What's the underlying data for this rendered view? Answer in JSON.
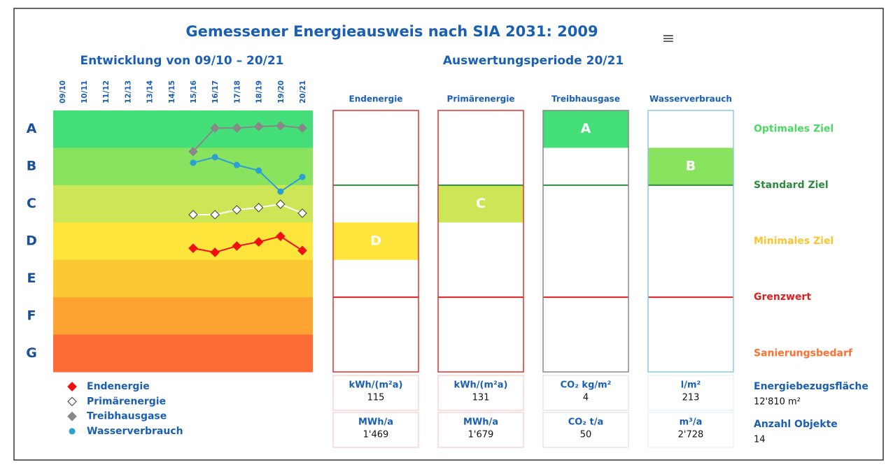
{
  "header": {
    "title": "Gemessener Energieausweis nach SIA 2031: 2009",
    "menu": "≡"
  },
  "trend": {
    "title": "Entwicklung von 09/10 – 20/21",
    "periods": [
      "09/10",
      "10/11",
      "11/12",
      "12/13",
      "13/14",
      "14/15",
      "15/16",
      "16/17",
      "17/18",
      "18/19",
      "19/20",
      "20/21"
    ],
    "classes": [
      "A",
      "B",
      "C",
      "D",
      "E",
      "F",
      "G"
    ],
    "class_colors": [
      "#44df78",
      "#8ae35f",
      "#cde655",
      "#fde53c",
      "#fdc932",
      "#fda332",
      "#fd6c36"
    ],
    "ylim": [
      0,
      7
    ],
    "series": [
      {
        "name": "Endenergie",
        "color": "#f01010",
        "marker": "diamond",
        "values": [
          null,
          null,
          null,
          null,
          null,
          null,
          3.69,
          3.8,
          3.63,
          3.52,
          3.37,
          3.75
        ]
      },
      {
        "name": "Primärenergie",
        "color": "#ffffff",
        "marker": "diamond",
        "values": [
          null,
          null,
          null,
          null,
          null,
          null,
          2.79,
          2.79,
          2.66,
          2.6,
          2.51,
          2.75
        ]
      },
      {
        "name": "Treibhausgase",
        "color": "#888888",
        "marker": "diamond",
        "values": [
          null,
          null,
          null,
          null,
          null,
          null,
          1.1,
          0.47,
          0.47,
          0.43,
          0.41,
          0.47
        ]
      },
      {
        "name": "Wasserverbrauch",
        "color": "#2a9fd6",
        "marker": "circle",
        "values": [
          null,
          null,
          null,
          null,
          null,
          null,
          1.4,
          1.25,
          1.46,
          1.61,
          2.17,
          1.78
        ]
      }
    ]
  },
  "period": {
    "title": "Auswertungsperiode 20/21",
    "columns": [
      {
        "name": "Endenergie",
        "rating": "D",
        "border": "#e33030",
        "unit": "kWh/(m²a)",
        "value": "115",
        "unit_total": "MWh/a",
        "total": "1'469"
      },
      {
        "name": "Primärenergie",
        "rating": "C",
        "border": "#e33030",
        "unit": "kWh/(m²a)",
        "value": "131",
        "unit_total": "MWh/a",
        "total": "1'679"
      },
      {
        "name": "Treibhausgase",
        "rating": "A",
        "border": "#888888",
        "unit": "CO₂ kg/m²",
        "value": "4",
        "unit_total": "CO₂ t/a",
        "total": "50"
      },
      {
        "name": "Wasserverbrauch",
        "rating": "B",
        "border": "#8cc8e8",
        "unit": "l/m²",
        "value": "213",
        "unit_total": "m³/a",
        "total": "2'728"
      }
    ]
  },
  "targets": [
    {
      "label": "Optimales Ziel",
      "color": "#4cd964"
    },
    {
      "label": "Standard Ziel",
      "color": "#2e8b3e"
    },
    {
      "label": "Minimales Ziel",
      "color": "#fdc42e"
    },
    {
      "label": "Grenzwert",
      "color": "#e02020"
    },
    {
      "label": "Sanierungsbedarf",
      "color": "#fd7030"
    }
  ],
  "info": [
    {
      "label": "Energiebezugsfläche",
      "value": "12'810 m²"
    },
    {
      "label": "Anzahl Objekte",
      "value": "14"
    }
  ]
}
